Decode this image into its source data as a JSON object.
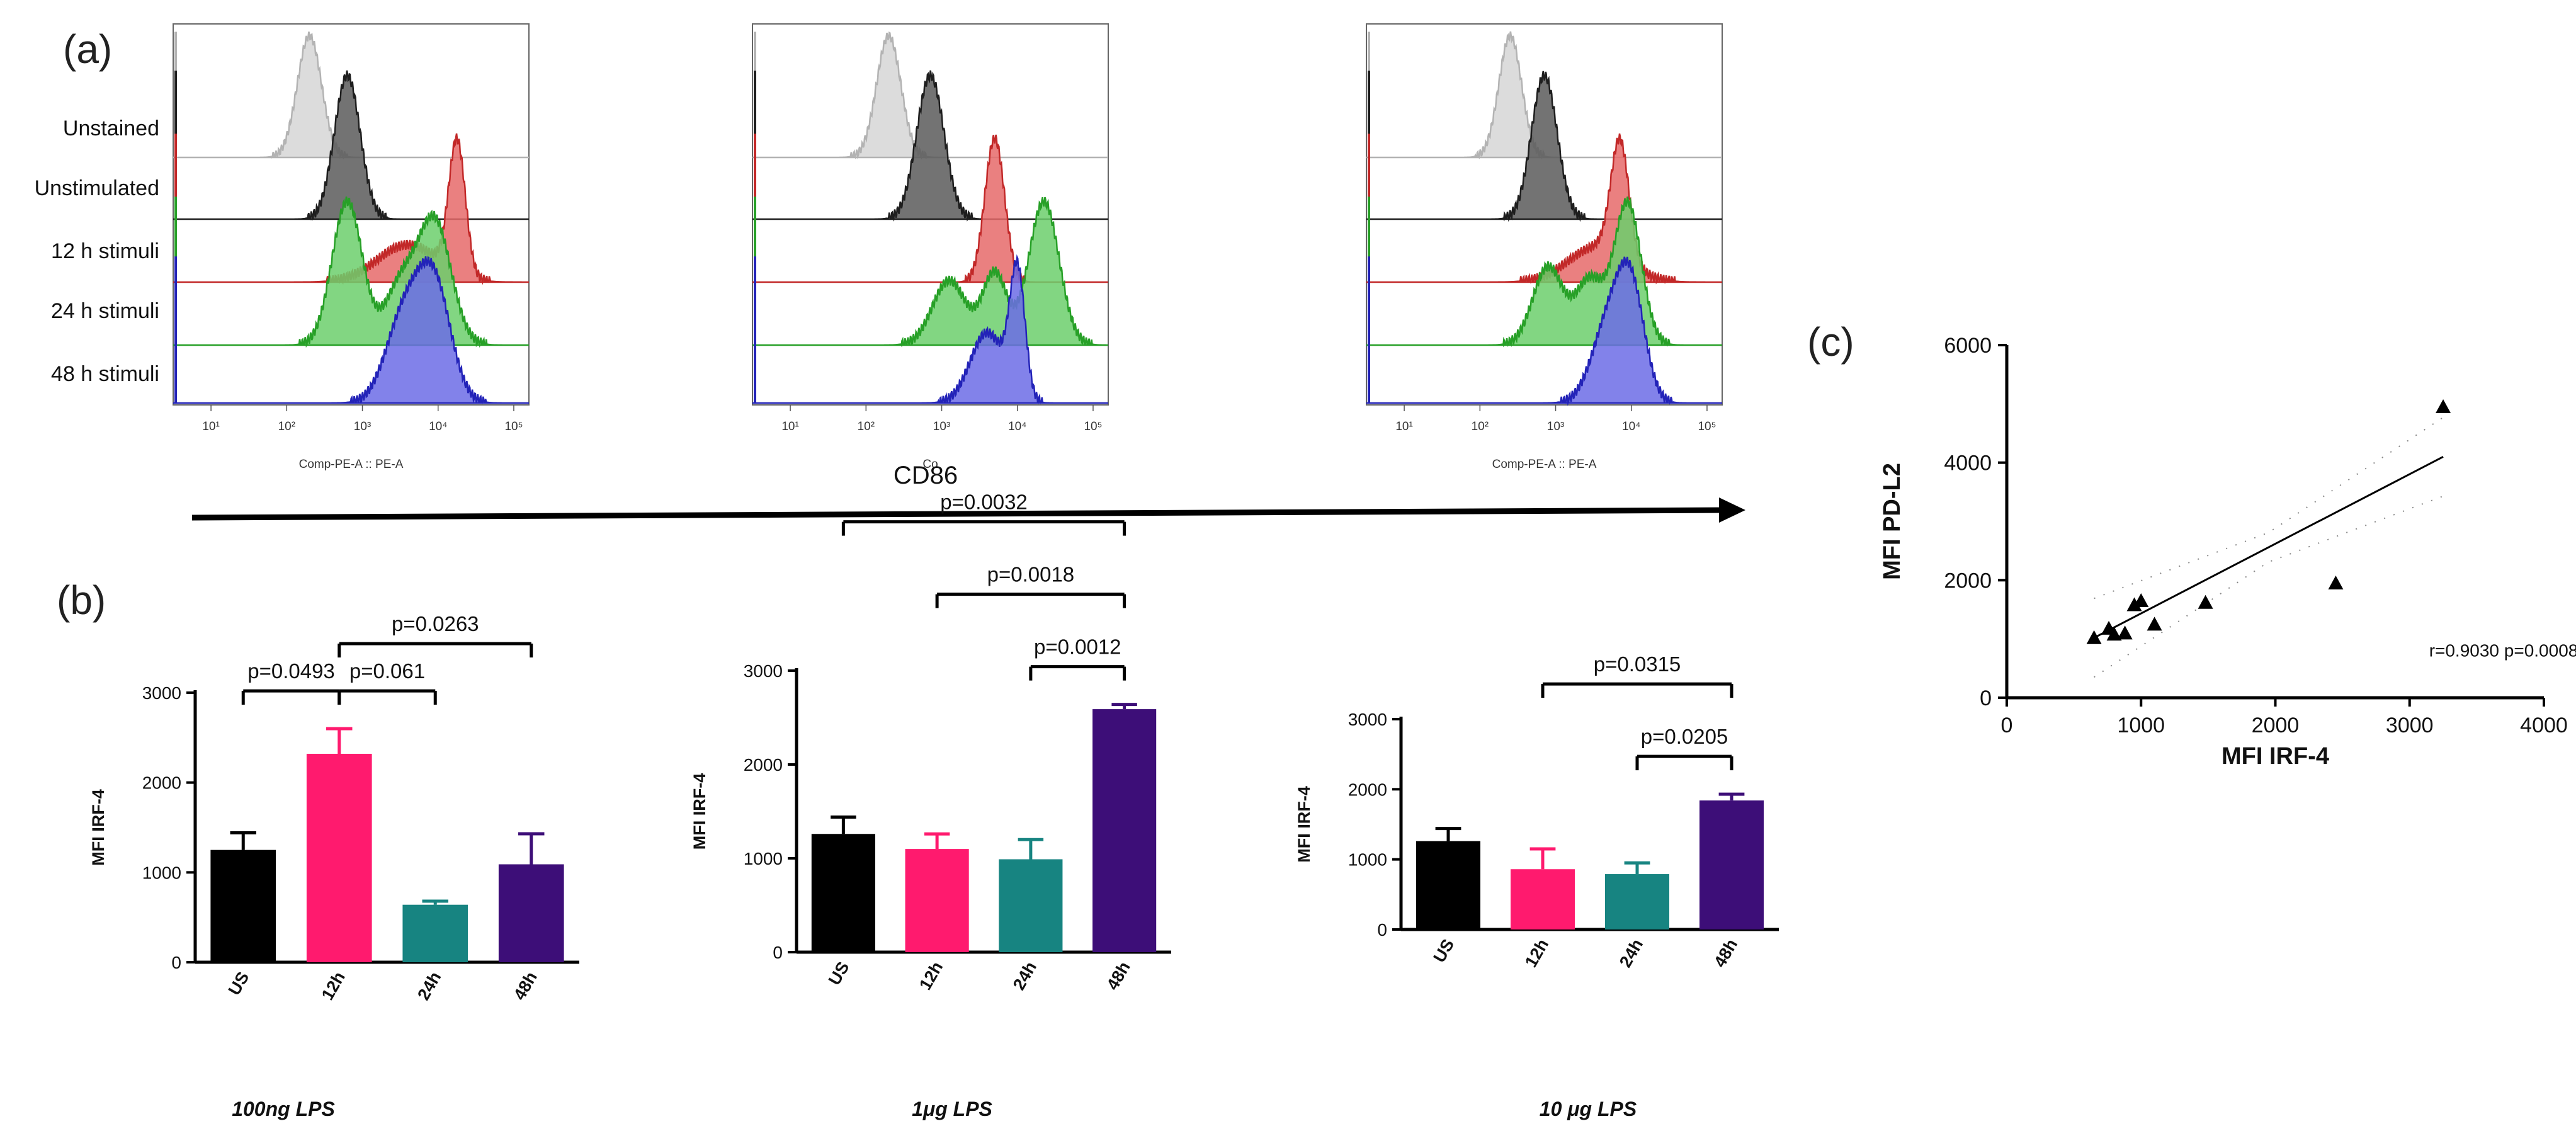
{
  "panel_labels": {
    "a": "(a)",
    "b": "(b)",
    "c": "(c)"
  },
  "cd86_label": "CD86",
  "chart_data": [
    {
      "type": "histogram",
      "panel": "a",
      "row_labels": [
        "Unstained",
        "Unstimulated",
        "12 h stimuli",
        "24 h stimuli",
        "48 h stimuli"
      ],
      "x_scale": "log",
      "x_ticks": [
        "10¹",
        "10²",
        "10³",
        "10⁴",
        "10⁵"
      ],
      "xlim_log10": [
        0.5,
        5.2
      ],
      "colors": [
        "#d6d6d6",
        "#5a5a5a",
        "#e66a6a",
        "#6ccf6c",
        "#6c6ce6"
      ],
      "edge_colors": [
        "#b3b3b3",
        "#1e1e1e",
        "#c22828",
        "#27a027",
        "#2323b8"
      ],
      "plots": [
        {
          "xlabel": "Comp-PE-A :: PE-A",
          "peaks": [
            [
              [
                2.3,
                0.16,
                1.0
              ]
            ],
            [
              [
                2.8,
                0.17,
                1.0
              ]
            ],
            [
              [
                3.6,
                0.4,
                0.28
              ],
              [
                4.25,
                0.11,
                1.0
              ]
            ],
            [
              [
                2.8,
                0.2,
                0.75
              ],
              [
                3.5,
                0.2,
                0.3
              ],
              [
                3.95,
                0.22,
                0.65
              ]
            ],
            [
              [
                3.55,
                0.24,
                0.75
              ],
              [
                3.95,
                0.22,
                1.0
              ]
            ]
          ]
        },
        {
          "xlabel": "Co",
          "peaks": [
            [
              [
                2.3,
                0.16,
                1.0
              ]
            ],
            [
              [
                2.85,
                0.18,
                1.0
              ]
            ],
            [
              [
                3.7,
                0.13,
                1.0
              ]
            ],
            [
              [
                3.1,
                0.22,
                0.45
              ],
              [
                3.7,
                0.16,
                0.5
              ],
              [
                4.35,
                0.2,
                1.0
              ]
            ],
            [
              [
                3.6,
                0.22,
                0.55
              ],
              [
                4.0,
                0.1,
                1.0
              ]
            ]
          ]
        },
        {
          "xlabel": "Comp-PE-A :: PE-A",
          "peaks": [
            [
              [
                2.4,
                0.15,
                1.0
              ]
            ],
            [
              [
                2.85,
                0.17,
                1.0
              ]
            ],
            [
              [
                3.55,
                0.38,
                0.3
              ],
              [
                3.85,
                0.12,
                1.0
              ]
            ],
            [
              [
                2.9,
                0.2,
                0.55
              ],
              [
                3.45,
                0.18,
                0.45
              ],
              [
                3.95,
                0.18,
                1.0
              ]
            ],
            [
              [
                3.7,
                0.22,
                0.75
              ],
              [
                4.0,
                0.18,
                1.0
              ]
            ]
          ]
        }
      ]
    },
    {
      "type": "bar",
      "panel": "b",
      "title": "100ng LPS",
      "ylabel": "MFI IRF-4",
      "categories": [
        "US",
        "12h",
        "24h",
        "48h"
      ],
      "values": [
        1250,
        2320,
        640,
        1090
      ],
      "errors": [
        190,
        280,
        40,
        340
      ],
      "colors": [
        "#000000",
        "#ff1a6e",
        "#178481",
        "#3d0e78"
      ],
      "ylim": [
        0,
        3000
      ],
      "yticks": [
        0,
        1000,
        2000,
        3000
      ],
      "brackets": [
        {
          "from": 0,
          "to": 1,
          "level": 0,
          "label": "p=0.0493"
        },
        {
          "from": 1,
          "to": 2,
          "level": 0,
          "label": "p=0.061"
        },
        {
          "from": 1,
          "to": 3,
          "level": 1,
          "label": "p=0.0263"
        }
      ]
    },
    {
      "type": "bar",
      "panel": "b",
      "title": "1μg LPS",
      "ylabel": "MFI IRF-4",
      "categories": [
        "US",
        "12h",
        "24h",
        "48h"
      ],
      "values": [
        1260,
        1100,
        990,
        2590
      ],
      "errors": [
        180,
        160,
        210,
        50
      ],
      "colors": [
        "#000000",
        "#ff1a6e",
        "#178481",
        "#3d0e78"
      ],
      "ylim": [
        0,
        3000
      ],
      "yticks": [
        0,
        1000,
        2000,
        3000
      ],
      "brackets": [
        {
          "from": 2,
          "to": 3,
          "level": 0,
          "label": "p=0.0012"
        },
        {
          "from": 1,
          "to": 3,
          "level": 1,
          "label": "p=0.0018"
        },
        {
          "from": 0,
          "to": 3,
          "level": 2,
          "label": "p=0.0032"
        }
      ]
    },
    {
      "type": "bar",
      "panel": "b",
      "title": "10 μg LPS",
      "ylabel": "MFI IRF-4",
      "categories": [
        "US",
        "12h",
        "24h",
        "48h"
      ],
      "values": [
        1260,
        860,
        790,
        1840
      ],
      "errors": [
        180,
        290,
        160,
        90
      ],
      "colors": [
        "#000000",
        "#ff1a6e",
        "#178481",
        "#3d0e78"
      ],
      "ylim": [
        0,
        3000
      ],
      "yticks": [
        0,
        1000,
        2000,
        3000
      ],
      "brackets": [
        {
          "from": 2,
          "to": 3,
          "level": 0,
          "label": "p=0.0205"
        },
        {
          "from": 1,
          "to": 3,
          "level": 1,
          "label": "p=0.0315"
        }
      ]
    },
    {
      "type": "scatter",
      "panel": "c",
      "xlabel": "MFI IRF-4",
      "ylabel": "MFI PD-L2",
      "xlim": [
        0,
        4000
      ],
      "ylim": [
        0,
        6000
      ],
      "xticks": [
        0,
        1000,
        2000,
        3000,
        4000
      ],
      "yticks": [
        0,
        2000,
        4000,
        6000
      ],
      "points": [
        [
          650,
          1020
        ],
        [
          760,
          1180
        ],
        [
          800,
          1080
        ],
        [
          880,
          1100
        ],
        [
          950,
          1580
        ],
        [
          1000,
          1650
        ],
        [
          1100,
          1250
        ],
        [
          1480,
          1620
        ],
        [
          2450,
          1950
        ],
        [
          3250,
          4950
        ]
      ],
      "fit": {
        "x": [
          650,
          3250
        ],
        "y": [
          1020,
          4100
        ]
      },
      "annotation": "r=0.9030 p=0.0008"
    }
  ]
}
